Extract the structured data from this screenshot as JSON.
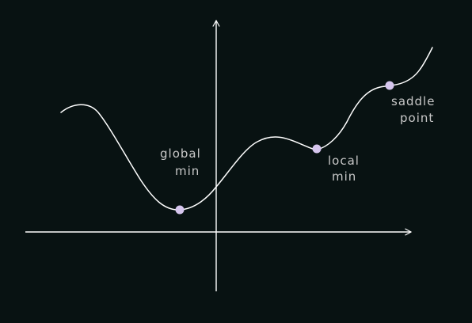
{
  "colors": {
    "background": "#081212",
    "curve": "#ffffff",
    "axes": "#ffffff",
    "point": "#d6c6ee",
    "label": "#c8c8c8"
  },
  "points": [
    {
      "id": "global-min",
      "label_lines": [
        "global",
        "min"
      ]
    },
    {
      "id": "local-min",
      "label_lines": [
        "local",
        "min"
      ]
    },
    {
      "id": "saddle-point",
      "label_lines": [
        "saddle",
        "point"
      ]
    }
  ]
}
